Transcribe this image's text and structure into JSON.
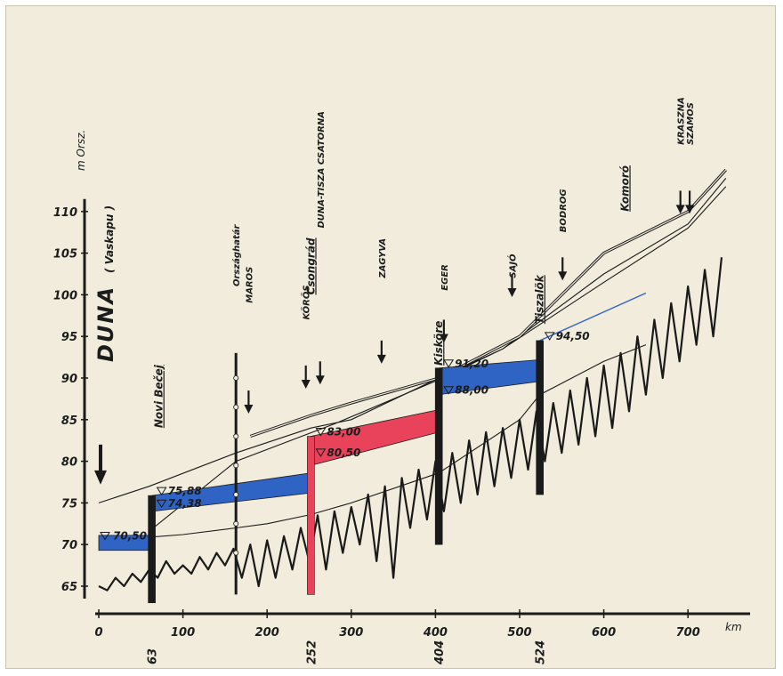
{
  "chart_data": {
    "type": "line",
    "river": "DUNA",
    "river_note": "( Vaskapu )",
    "y_unit": "m Orsz.",
    "x_unit": "km",
    "x_ticks": [
      0,
      100,
      200,
      300,
      400,
      500,
      600,
      700
    ],
    "y_ticks": [
      65,
      70,
      75,
      80,
      85,
      90,
      95,
      100,
      105,
      110
    ],
    "xlim": [
      0,
      750
    ],
    "ylim": [
      62,
      115
    ],
    "dam_km": [
      {
        "km": 63,
        "label": "63"
      },
      {
        "km": 252,
        "label": "252"
      },
      {
        "km": 404,
        "label": "404"
      },
      {
        "km": 524,
        "label": "524"
      }
    ],
    "dams": [
      {
        "name": "Novi Bečej",
        "km": 63,
        "upstream": "75,88",
        "downstream": "74,38",
        "upstream_m": 75.88,
        "downstream_m": 74.38,
        "bottom_m": 63
      },
      {
        "name": "Csongrád",
        "km": 252,
        "upstream": "83,00",
        "downstream": "80,50",
        "upstream_m": 83.0,
        "downstream_m": 80.5,
        "bottom_m": 64
      },
      {
        "name": "Kisköre",
        "km": 404,
        "upstream": "91,20",
        "downstream": "88,00",
        "upstream_m": 91.2,
        "downstream_m": 88.0,
        "bottom_m": 70
      },
      {
        "name": "Tiszalök",
        "km": 524,
        "upstream": "94,50",
        "downstream": "",
        "upstream_m": 94.5,
        "downstream_m": null,
        "bottom_m": 76
      }
    ],
    "start_level": "70,50",
    "start_level_m": 70.5,
    "border_label": "Országhatár",
    "border_km": 163,
    "places": [
      {
        "name": "Komoró",
        "km": 640
      }
    ],
    "tributaries": [
      {
        "name": "MAROS",
        "km": 178
      },
      {
        "name": "KÖRÖS",
        "km": 246
      },
      {
        "name": "DUNA-TISZA CSATORNA",
        "km": 263
      },
      {
        "name": "ZAGYVA",
        "km": 336
      },
      {
        "name": "EGER",
        "km": 410
      },
      {
        "name": "SAJÓ",
        "km": 491
      },
      {
        "name": "BODROG",
        "km": 551
      },
      {
        "name": "KRASZNA",
        "km": 691
      },
      {
        "name": "SZAMOS",
        "km": 702
      }
    ],
    "series": [
      {
        "x": [
          0,
          50,
          100,
          163,
          200,
          252,
          300,
          404,
          500,
          524,
          600,
          650
        ],
        "y": [
          70.5,
          70.8,
          71.2,
          72,
          72.5,
          73.6,
          75,
          78.6,
          85,
          88,
          92,
          94
        ],
        "style": "thin-line"
      },
      {
        "x": [
          60,
          163,
          280,
          404,
          480,
          600,
          700,
          745
        ],
        "y": [
          71.6,
          80,
          84.5,
          89.8,
          93.5,
          101.5,
          108,
          113
        ],
        "style": "thin-line"
      },
      {
        "x": [
          0,
          60,
          163,
          252,
          300,
          404,
          480,
          600,
          700,
          745
        ],
        "y": [
          75,
          77,
          81,
          84,
          85,
          90,
          93.5,
          102.5,
          108.5,
          114
        ],
        "style": "thin-line"
      },
      {
        "x": [
          180,
          252,
          300,
          404,
          500,
          600,
          700,
          745
        ],
        "y": [
          83,
          85.5,
          87,
          90,
          95,
          105,
          110,
          115
        ],
        "style": "double-line"
      }
    ],
    "bed_profile": {
      "x": [
        0,
        10,
        20,
        30,
        40,
        50,
        60,
        70,
        80,
        90,
        100,
        110,
        120,
        130,
        140,
        150,
        160,
        170,
        180,
        190,
        200,
        210,
        220,
        230,
        240,
        250,
        260,
        270,
        280,
        290,
        300,
        310,
        320,
        330,
        340,
        350,
        360,
        370,
        380,
        390,
        400,
        410,
        420,
        430,
        440,
        450,
        460,
        470,
        480,
        490,
        500,
        510,
        520,
        530,
        540,
        550,
        560,
        570,
        580,
        590,
        600,
        610,
        620,
        630,
        640,
        650,
        660,
        670,
        680,
        690,
        700,
        710,
        720,
        730,
        740
      ],
      "y": [
        65,
        64.5,
        66,
        65,
        66.5,
        65.5,
        67,
        66,
        68,
        66.5,
        67.5,
        66.5,
        68.5,
        67,
        69,
        67.5,
        69.5,
        66,
        70,
        65,
        70.5,
        66,
        71,
        67,
        72,
        68,
        73.5,
        67,
        74,
        69,
        74.5,
        70,
        76,
        68,
        77,
        66,
        78,
        72,
        79,
        73,
        80,
        74,
        81,
        75,
        82.5,
        76,
        83.5,
        77,
        84,
        78,
        85,
        79,
        86,
        80,
        87,
        81,
        88.5,
        82,
        90,
        83,
        91.5,
        84,
        93,
        86,
        95,
        88,
        97,
        90,
        99,
        92,
        101,
        94,
        103,
        95,
        104.5
      ]
    },
    "stretch_colors": {
      "blue": "#2f63c4",
      "red": "#e8435a",
      "line": "#1a1a1a",
      "paper": "#f1ecdc"
    }
  }
}
